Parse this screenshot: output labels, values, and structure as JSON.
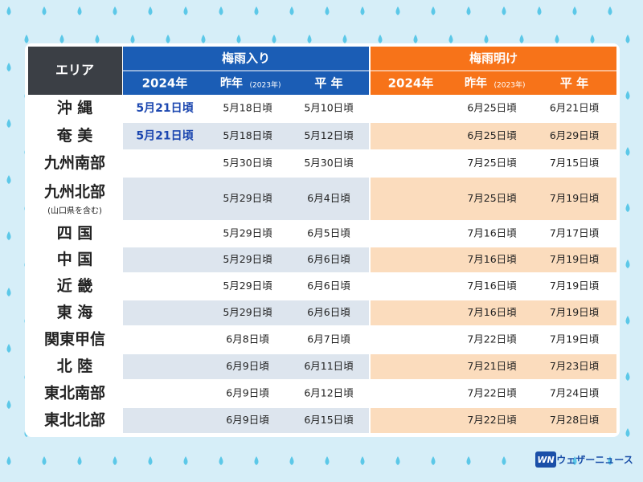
{
  "table": {
    "headers": {
      "area": "エリア",
      "entry_group": "梅雨入り",
      "exit_group": "梅雨明け",
      "columns": {
        "y2024": "2024年",
        "last": "昨年",
        "last_note": "(2023年)",
        "normal": "平 年"
      }
    },
    "rows": [
      {
        "area": "沖 縄",
        "entry": {
          "y2024": "5月21日頃",
          "last": "5月18日頃",
          "normal": "5月10日頃"
        },
        "exit": {
          "last": "6月25日頃",
          "normal": "6月21日頃"
        }
      },
      {
        "area": "奄 美",
        "entry": {
          "y2024": "5月21日頃",
          "last": "5月18日頃",
          "normal": "5月12日頃"
        },
        "exit": {
          "last": "6月25日頃",
          "normal": "6月29日頃"
        }
      },
      {
        "area": "九州南部",
        "entry": {
          "last": "5月30日頃",
          "normal": "5月30日頃"
        },
        "exit": {
          "last": "7月25日頃",
          "normal": "7月15日頃"
        }
      },
      {
        "area": "九州北部",
        "note": "(山口県を含む)",
        "entry": {
          "last": "5月29日頃",
          "normal": "6月4日頃"
        },
        "exit": {
          "last": "7月25日頃",
          "normal": "7月19日頃"
        }
      },
      {
        "area": "四 国",
        "entry": {
          "last": "5月29日頃",
          "normal": "6月5日頃"
        },
        "exit": {
          "last": "7月16日頃",
          "normal": "7月17日頃"
        }
      },
      {
        "area": "中 国",
        "entry": {
          "last": "5月29日頃",
          "normal": "6月6日頃"
        },
        "exit": {
          "last": "7月16日頃",
          "normal": "7月19日頃"
        }
      },
      {
        "area": "近 畿",
        "entry": {
          "last": "5月29日頃",
          "normal": "6月6日頃"
        },
        "exit": {
          "last": "7月16日頃",
          "normal": "7月19日頃"
        }
      },
      {
        "area": "東 海",
        "entry": {
          "last": "5月29日頃",
          "normal": "6月6日頃"
        },
        "exit": {
          "last": "7月16日頃",
          "normal": "7月19日頃"
        }
      },
      {
        "area": "関東甲信",
        "entry": {
          "last": "6月8日頃",
          "normal": "6月7日頃"
        },
        "exit": {
          "last": "7月22日頃",
          "normal": "7月19日頃"
        }
      },
      {
        "area": "北 陸",
        "entry": {
          "last": "6月9日頃",
          "normal": "6月11日頃"
        },
        "exit": {
          "last": "7月21日頃",
          "normal": "7月23日頃"
        }
      },
      {
        "area": "東北南部",
        "entry": {
          "last": "6月9日頃",
          "normal": "6月12日頃"
        },
        "exit": {
          "last": "7月22日頃",
          "normal": "7月24日頃"
        }
      },
      {
        "area": "東北北部",
        "entry": {
          "last": "6月9日頃",
          "normal": "6月15日頃"
        },
        "exit": {
          "last": "7月22日頃",
          "normal": "7月28日頃"
        }
      }
    ]
  },
  "logo": {
    "mark": "WN",
    "text": "ウェザーニュース"
  }
}
